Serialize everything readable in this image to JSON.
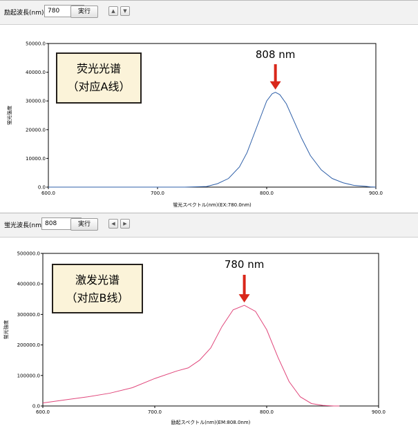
{
  "panels": [
    {
      "toolbar": {
        "wavelength_label": "励起波長(nm):",
        "wavelength_value": "780",
        "execute_label": "実行",
        "arrow_left": "▲",
        "arrow_right": "▼"
      },
      "annotation": {
        "box_line1": "荧光光谱",
        "box_line2": "（对应A线）",
        "peak_label": "808 nm"
      },
      "chart_data": {
        "type": "line",
        "xlabel": "蛍光スペクトル(nm)(EX:780.0nm)",
        "ylabel": "蛍光強度",
        "xlim": [
          600,
          900
        ],
        "ylim": [
          0,
          50000
        ],
        "x_ticks": [
          "600.0",
          "700.0",
          "800.0",
          "900.0"
        ],
        "y_ticks": [
          "0.0",
          "10000.0",
          "20000.0",
          "30000.0",
          "40000.0",
          "50000.0"
        ],
        "grid": false,
        "series": [
          {
            "color": "#2e5fa8",
            "x": [
              600,
              725,
              745,
              755,
              765,
              775,
              782,
              788,
              795,
              800,
              805,
              808,
              812,
              818,
              825,
              832,
              840,
              850,
              860,
              870,
              880,
              890,
              895,
              900
            ],
            "y": [
              0,
              0,
              200,
              1200,
              3000,
              7000,
              12000,
              18000,
              25000,
              30000,
              32500,
              33000,
              32200,
              29000,
              23000,
              17000,
              11000,
              6000,
              3000,
              1500,
              600,
              300,
              100,
              0
            ]
          }
        ]
      }
    },
    {
      "toolbar": {
        "wavelength_label": "蛍光波長(nm):",
        "wavelength_value": "808",
        "execute_label": "実行",
        "arrow_left": "◀",
        "arrow_right": "▶"
      },
      "annotation": {
        "box_line1": "激发光谱",
        "box_line2": "（对应B线）",
        "peak_label": "780 nm"
      },
      "chart_data": {
        "type": "line",
        "xlabel": "励起スペクトル(nm)(EM:808.0nm)",
        "ylabel": "蛍光強度",
        "xlim": [
          600,
          900
        ],
        "ylim": [
          0,
          500000
        ],
        "x_ticks": [
          "600.0",
          "700.0",
          "800.0",
          "900.0"
        ],
        "y_ticks": [
          "0.0",
          "100000.0",
          "200000.0",
          "300000.0",
          "400000.0",
          "500000.0"
        ],
        "grid": false,
        "series": [
          {
            "color": "#e0457a",
            "x": [
              600,
              620,
              640,
              660,
              680,
              700,
              720,
              730,
              740,
              750,
              760,
              770,
              780,
              790,
              800,
              810,
              820,
              830,
              840,
              850,
              860,
              865
            ],
            "y": [
              10000,
              20000,
              30000,
              42000,
              60000,
              90000,
              115000,
              125000,
              150000,
              190000,
              260000,
              315000,
              330000,
              310000,
              250000,
              160000,
              80000,
              30000,
              8000,
              2000,
              0,
              0
            ]
          }
        ]
      }
    }
  ],
  "colors": {
    "arrow": "#d9271a",
    "box_fill": "#fbf3d9",
    "box_border": "#231f1b"
  }
}
